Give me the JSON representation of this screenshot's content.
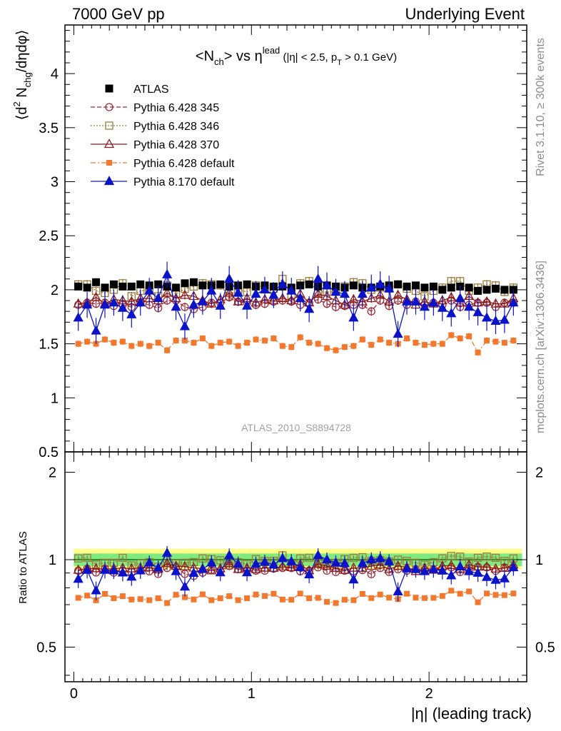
{
  "header": {
    "left": "7000 GeV pp",
    "right": "Underlying Event"
  },
  "side_labels": {
    "rivet": "Rivet 3.1.10, ≥ 300k events",
    "mcplots": "mcplots.cern.ch [arXiv:1306.3436]"
  },
  "watermark": "ATLAS_2010_S8894728",
  "chart_data": {
    "type": "scatter",
    "title": "<N_ch> vs η^lead (|η| < 2.5, p_T > 0.1 GeV)",
    "title_parts": {
      "n": "<N",
      "ch_sub": "ch",
      "vs": "> vs η",
      "lead_sup": "lead",
      "cut_a": " (|η| < 2.5, p",
      "t_sub": "T",
      "cut_b": " > 0.1 GeV)"
    },
    "ylabel": "⟨d² N_chg/dηdφ⟩",
    "ylabel_parts": {
      "a": "⟨d",
      "two": "2",
      "b": " N",
      "chg": "chg",
      "c": "/dηdφ⟩"
    },
    "ratio_ylabel": "Ratio to ATLAS",
    "xlabel": "|η| (leading track)",
    "xlim": [
      -0.05,
      2.55
    ],
    "ylim": [
      0.5,
      4.45
    ],
    "ratio_ylim": [
      0.38,
      2.35
    ],
    "x_ticks": [
      0,
      1,
      2
    ],
    "y_ticks": [
      0.5,
      1,
      1.5,
      2,
      2.5,
      3,
      3.5,
      4
    ],
    "y_tick_labels": [
      "0.5",
      "1",
      "1.5",
      "2",
      "2.5",
      "3",
      "3.5",
      "4"
    ],
    "ratio_y_ticks": [
      0.5,
      1,
      2
    ],
    "ratio_y_tick_labels": [
      "0.5",
      "1",
      "2"
    ],
    "x_tick_labels": [
      "0",
      "1",
      "2"
    ],
    "x": [
      0.025,
      0.075,
      0.125,
      0.175,
      0.225,
      0.275,
      0.325,
      0.375,
      0.425,
      0.475,
      0.525,
      0.575,
      0.625,
      0.675,
      0.725,
      0.775,
      0.825,
      0.875,
      0.925,
      0.975,
      1.025,
      1.075,
      1.125,
      1.175,
      1.225,
      1.275,
      1.325,
      1.375,
      1.425,
      1.475,
      1.525,
      1.575,
      1.625,
      1.675,
      1.725,
      1.775,
      1.825,
      1.875,
      1.925,
      1.975,
      2.025,
      2.075,
      2.125,
      2.175,
      2.225,
      2.275,
      2.325,
      2.375,
      2.425,
      2.475
    ],
    "legend_position": "top-left",
    "series": [
      {
        "name": "ATLAS",
        "color": "#000000",
        "marker": "filled-square",
        "values": [
          2.03,
          2.02,
          2.07,
          2.02,
          2.05,
          2.03,
          2.03,
          2.05,
          2.04,
          2.05,
          2.03,
          2.02,
          2.06,
          2.07,
          2.04,
          2.04,
          2.05,
          2.03,
          2.04,
          2.05,
          2.03,
          2.04,
          2.03,
          2.03,
          2.02,
          2.04,
          2.05,
          2.03,
          2.04,
          2.03,
          2.02,
          2.04,
          2.02,
          2.02,
          2.03,
          2.04,
          2.05,
          2.03,
          2.04,
          2.02,
          2.03,
          2.0,
          2.02,
          2.03,
          2.02,
          1.99,
          2.0,
          2.01,
          2.0,
          2.0
        ]
      },
      {
        "name": "Pythia 6.428 345",
        "color": "#9c2a3c",
        "marker": "open-circle",
        "line": "dashed",
        "values": [
          1.86,
          1.88,
          1.87,
          1.88,
          1.85,
          1.86,
          1.84,
          1.88,
          1.86,
          1.83,
          1.9,
          1.9,
          1.84,
          1.82,
          1.84,
          1.88,
          1.88,
          1.93,
          1.89,
          1.88,
          1.86,
          1.87,
          1.89,
          1.9,
          1.89,
          1.86,
          1.88,
          1.91,
          1.87,
          1.84,
          1.85,
          1.86,
          1.86,
          1.8,
          1.9,
          1.85,
          1.9,
          1.86,
          1.89,
          1.86,
          1.88,
          1.86,
          1.9,
          1.84,
          1.86,
          1.88,
          1.88,
          1.84,
          1.88,
          1.88
        ]
      },
      {
        "name": "Pythia 6.428 346",
        "color": "#9c7a3c",
        "marker": "open-square",
        "line": "dotted",
        "values": [
          2.05,
          2.05,
          1.99,
          1.97,
          2.0,
          2.06,
          1.94,
          1.99,
          2.0,
          1.94,
          2.04,
          1.96,
          2.01,
          2.03,
          2.06,
          2.05,
          2.04,
          1.94,
          2.0,
          1.98,
          2.04,
          2.02,
          2.01,
          2.1,
          1.95,
          2.06,
          2.08,
          1.98,
          1.98,
          1.98,
          2.03,
          2.07,
          2.06,
          2.0,
          2.02,
          2.01,
          2.05,
          2.01,
          1.99,
          1.94,
          1.99,
          2.02,
          2.08,
          2.08,
          1.99,
          2.02,
          2.05,
          2.04,
          1.98,
          2.02
        ]
      },
      {
        "name": "Pythia 6.428 370",
        "color": "#8b1a1a",
        "marker": "open-triangle",
        "line": "solid",
        "values": [
          1.87,
          1.88,
          1.93,
          1.87,
          1.91,
          1.9,
          1.89,
          1.92,
          1.92,
          1.9,
          1.97,
          1.92,
          1.95,
          1.94,
          1.9,
          1.87,
          1.91,
          1.97,
          1.89,
          1.92,
          1.88,
          1.91,
          1.9,
          1.92,
          1.9,
          1.96,
          1.88,
          1.96,
          1.94,
          1.9,
          1.86,
          1.91,
          1.89,
          1.92,
          1.95,
          1.89,
          1.95,
          1.91,
          1.86,
          1.89,
          1.87,
          1.9,
          1.93,
          1.88,
          1.94,
          1.88,
          1.89,
          1.87,
          1.87,
          1.92
        ]
      },
      {
        "name": "Pythia 6.428 default",
        "color": "#f2782e",
        "marker": "filled-square-small",
        "line": "dashdot",
        "values": [
          1.5,
          1.52,
          1.5,
          1.54,
          1.51,
          1.52,
          1.48,
          1.5,
          1.48,
          1.51,
          1.44,
          1.53,
          1.53,
          1.51,
          1.55,
          1.48,
          1.51,
          1.52,
          1.48,
          1.51,
          1.54,
          1.53,
          1.55,
          1.48,
          1.47,
          1.56,
          1.51,
          1.5,
          1.46,
          1.44,
          1.47,
          1.48,
          1.54,
          1.49,
          1.54,
          1.51,
          1.5,
          1.55,
          1.51,
          1.49,
          1.5,
          1.5,
          1.58,
          1.55,
          1.57,
          1.42,
          1.53,
          1.52,
          1.51,
          1.53
        ]
      },
      {
        "name": "Pythia 8.170 default",
        "color": "#0b13c9",
        "marker": "filled-triangle",
        "line": "solid",
        "values": [
          1.74,
          1.86,
          1.62,
          1.86,
          1.88,
          1.83,
          1.77,
          1.88,
          1.99,
          1.92,
          2.14,
          1.84,
          1.66,
          1.86,
          1.89,
          1.99,
          1.85,
          2.1,
          1.97,
          1.85,
          1.96,
          2.0,
          1.95,
          2.05,
          1.99,
          1.92,
          1.82,
          2.1,
          2.04,
          1.98,
          1.96,
          1.74,
          1.96,
          2.02,
          2.05,
          2.01,
          1.59,
          1.89,
          1.89,
          1.84,
          1.88,
          1.83,
          1.78,
          1.92,
          1.84,
          1.79,
          1.74,
          1.71,
          1.72,
          1.88
        ]
      }
    ],
    "y_err": {
      "ATLAS": 0.03,
      "Pythia 6.428 345": 0.04,
      "Pythia 6.428 346": 0.04,
      "Pythia 6.428 370": 0.04,
      "Pythia 6.428 default": 0.03,
      "Pythia 8.170 default": 0.12
    },
    "ratio_band": {
      "inner": [
        0.95,
        1.05
      ],
      "outer": [
        0.93,
        1.09
      ]
    },
    "colors": {
      "band_inner": "#7fea7f",
      "band_outer": "#ffff8a",
      "ratio_line": "#2b8b2b"
    }
  }
}
